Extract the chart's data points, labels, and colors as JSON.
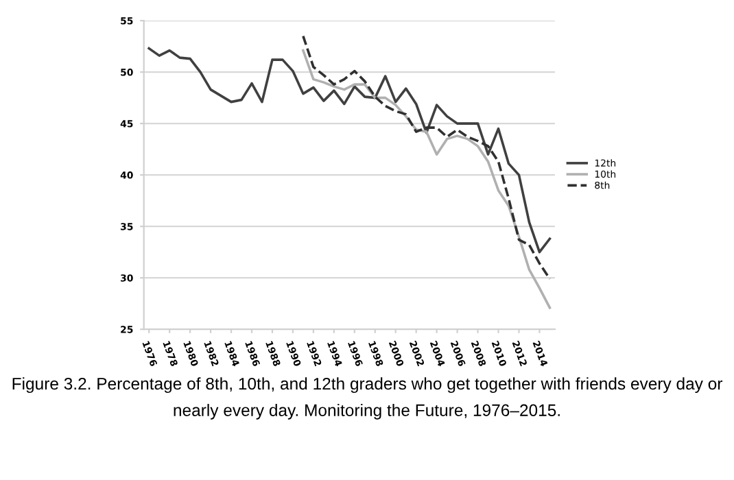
{
  "chart_data": {
    "type": "line",
    "x": [
      1976,
      1977,
      1978,
      1979,
      1980,
      1981,
      1982,
      1983,
      1984,
      1985,
      1986,
      1987,
      1988,
      1989,
      1990,
      1991,
      1992,
      1993,
      1994,
      1995,
      1996,
      1997,
      1998,
      1999,
      2000,
      2001,
      2002,
      2003,
      2004,
      2005,
      2006,
      2007,
      2008,
      2009,
      2010,
      2011,
      2012,
      2013,
      2014,
      2015
    ],
    "series": [
      {
        "name": "12th",
        "color": "#404040",
        "line_style": "solid",
        "values": [
          52.3,
          51.6,
          52.1,
          51.4,
          51.3,
          50.0,
          48.3,
          47.7,
          47.1,
          47.3,
          48.9,
          47.1,
          51.2,
          51.2,
          50.1,
          47.9,
          48.5,
          47.2,
          48.2,
          46.9,
          48.6,
          47.6,
          47.5,
          49.6,
          47.1,
          48.4,
          46.9,
          44.1,
          46.8,
          45.7,
          45.0,
          45.0,
          45.0,
          42.0,
          44.5,
          41.1,
          40.0,
          35.4,
          32.5,
          33.8
        ]
      },
      {
        "name": "10th",
        "color": "#b0b0b0",
        "line_style": "solid",
        "values": [
          null,
          null,
          null,
          null,
          null,
          null,
          null,
          null,
          null,
          null,
          null,
          null,
          null,
          null,
          null,
          52.1,
          49.3,
          49.0,
          48.6,
          48.3,
          48.8,
          48.8,
          47.5,
          47.5,
          46.8,
          45.7,
          44.4,
          44.2,
          42.0,
          43.5,
          43.8,
          43.5,
          42.8,
          41.3,
          38.5,
          37.0,
          34.0,
          30.8,
          29.0,
          27.1
        ]
      },
      {
        "name": "8th",
        "color": "#303030",
        "line_style": "dashed",
        "values": [
          null,
          null,
          null,
          null,
          null,
          null,
          null,
          null,
          null,
          null,
          null,
          null,
          null,
          null,
          null,
          53.5,
          50.5,
          49.7,
          48.8,
          49.3,
          50.1,
          49.1,
          47.6,
          46.7,
          46.2,
          45.9,
          44.2,
          44.6,
          44.6,
          43.7,
          44.4,
          43.7,
          43.3,
          42.8,
          41.3,
          37.7,
          33.7,
          33.2,
          31.4,
          29.9
        ]
      }
    ],
    "xlim": [
      1975.5,
      2015.5
    ],
    "xticks": [
      1976,
      1978,
      1980,
      1982,
      1984,
      1986,
      1988,
      1990,
      1992,
      1994,
      1996,
      1998,
      2000,
      2002,
      2004,
      2006,
      2008,
      2010,
      2012,
      2014
    ],
    "ylim": [
      25,
      55
    ],
    "yticks": [
      25,
      30,
      35,
      40,
      45,
      50,
      55
    ],
    "grid": "y",
    "legend": "right",
    "marker": "none",
    "annotations": [
      "Figure 3.2. Percentage of 8th, 10th, and 12th graders who get together with friends every day or nearly every day. Monitoring the Future, 1976–2015."
    ]
  }
}
